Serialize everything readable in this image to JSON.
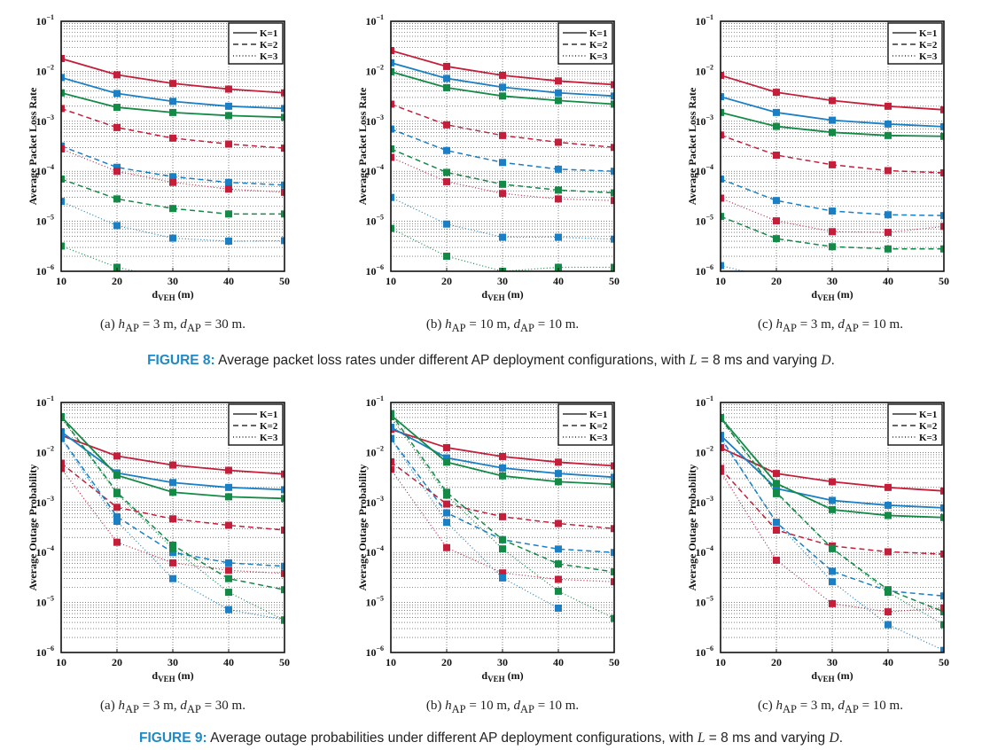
{
  "colors": {
    "red": "#c41e3a",
    "blue": "#1a7fc4",
    "green": "#138a46",
    "caption_label": "#1e8ac8"
  },
  "figures": [
    {
      "label": "FIGURE 8:",
      "caption_pre": "Average packet loss rates under different AP deployment configurations, with ",
      "caption_L": "L",
      "caption_mid": " = 8 ms and varying ",
      "caption_D": "D",
      "caption_end": "."
    },
    {
      "label": "FIGURE 9:",
      "caption_pre": "Average outage probabilities under different AP deployment configurations, with ",
      "caption_L": "L",
      "caption_mid": " = 8 ms and varying ",
      "caption_D": "D",
      "caption_end": "."
    }
  ],
  "subcaptions": [
    {
      "tag": "(a)",
      "h": "3 m",
      "d": "30 m."
    },
    {
      "tag": "(b)",
      "h": "10 m",
      "d": "10 m."
    },
    {
      "tag": "(c)",
      "h": "3 m",
      "d": "10 m."
    }
  ],
  "chart_data": [
    {
      "figure": 8,
      "panel": "a",
      "type": "line",
      "title": "",
      "xlabel": "d_VEH (m)",
      "ylabel": "Average Packet Loss Rate",
      "x": [
        10,
        20,
        30,
        40,
        50
      ],
      "yscale": "log",
      "ylim": [
        1e-06,
        0.1
      ],
      "xticks": [
        "10",
        "20",
        "30",
        "40",
        "50"
      ],
      "yticks": [
        "10^-6",
        "10^-5",
        "10^-4",
        "10^-3",
        "10^-2",
        "10^-1"
      ],
      "grid": true,
      "legend": [
        "K=1",
        "K=2",
        "K=3"
      ],
      "legend_position": "top-right",
      "series": [
        {
          "name": "red K=1",
          "color": "red",
          "style": "solid",
          "values": [
            0.018,
            0.0085,
            0.0057,
            0.0044,
            0.0037
          ]
        },
        {
          "name": "blue K=1",
          "color": "blue",
          "style": "solid",
          "values": [
            0.0075,
            0.0036,
            0.0025,
            0.002,
            0.0018
          ]
        },
        {
          "name": "green K=1",
          "color": "green",
          "style": "solid",
          "values": [
            0.0037,
            0.0019,
            0.0015,
            0.0013,
            0.0012
          ]
        },
        {
          "name": "red K=2",
          "color": "red",
          "style": "dashed",
          "values": [
            0.0018,
            0.00075,
            0.00046,
            0.00035,
            0.00029
          ]
        },
        {
          "name": "blue K=2",
          "color": "blue",
          "style": "dashed",
          "values": [
            0.00032,
            0.00012,
            7.8e-05,
            6e-05,
            5.3e-05
          ]
        },
        {
          "name": "green K=2",
          "color": "green",
          "style": "dashed",
          "values": [
            7e-05,
            2.8e-05,
            1.8e-05,
            1.4e-05,
            1.4e-05
          ]
        },
        {
          "name": "red K=3",
          "color": "red",
          "style": "dotted",
          "values": [
            0.00028,
            0.0001,
            6e-05,
            4.4e-05,
            3.8e-05
          ]
        },
        {
          "name": "blue K=3",
          "color": "blue",
          "style": "dotted",
          "values": [
            2.5e-05,
            8.2e-06,
            4.6e-06,
            4e-06,
            4.1e-06
          ]
        },
        {
          "name": "green K=3",
          "color": "green",
          "style": "dotted",
          "values": [
            3.2e-06,
            1.2e-06,
            7e-07,
            null,
            null
          ]
        }
      ]
    },
    {
      "figure": 8,
      "panel": "b",
      "type": "line",
      "title": "",
      "xlabel": "d_VEH (m)",
      "ylabel": "Average Packet Loss Rate",
      "x": [
        10,
        20,
        30,
        40,
        50
      ],
      "yscale": "log",
      "ylim": [
        1e-06,
        0.1
      ],
      "xticks": [
        "10",
        "20",
        "30",
        "40",
        "50"
      ],
      "yticks": [
        "10^-6",
        "10^-5",
        "10^-4",
        "10^-3",
        "10^-2",
        "10^-1"
      ],
      "grid": true,
      "legend": [
        "K=1",
        "K=2",
        "K=3"
      ],
      "legend_position": "top-right",
      "series": [
        {
          "name": "red K=1",
          "color": "red",
          "style": "solid",
          "values": [
            0.026,
            0.0125,
            0.0083,
            0.0064,
            0.0054
          ]
        },
        {
          "name": "blue K=1",
          "color": "blue",
          "style": "solid",
          "values": [
            0.0148,
            0.0072,
            0.0048,
            0.0037,
            0.0032
          ]
        },
        {
          "name": "green K=1",
          "color": "green",
          "style": "solid",
          "values": [
            0.0098,
            0.0047,
            0.0032,
            0.0026,
            0.0022
          ]
        },
        {
          "name": "red K=2",
          "color": "red",
          "style": "dashed",
          "values": [
            0.0022,
            0.00085,
            0.00052,
            0.00038,
            0.0003
          ]
        },
        {
          "name": "blue K=2",
          "color": "blue",
          "style": "dashed",
          "values": [
            0.0007,
            0.00026,
            0.00015,
            0.00011,
            0.0001
          ]
        },
        {
          "name": "green K=2",
          "color": "green",
          "style": "dashed",
          "values": [
            0.00028,
            9.5e-05,
            5.5e-05,
            4.2e-05,
            3.7e-05
          ]
        },
        {
          "name": "red K=3",
          "color": "red",
          "style": "dotted",
          "values": [
            0.00019,
            6.2e-05,
            3.6e-05,
            2.8e-05,
            2.6e-05
          ]
        },
        {
          "name": "blue K=3",
          "color": "blue",
          "style": "dotted",
          "values": [
            3e-05,
            8.8e-06,
            4.8e-06,
            4.8e-06,
            4.4e-06
          ]
        },
        {
          "name": "green K=3",
          "color": "green",
          "style": "dotted",
          "values": [
            7.2e-06,
            2e-06,
            1e-06,
            1.2e-06,
            1.2e-06
          ]
        }
      ]
    },
    {
      "figure": 8,
      "panel": "c",
      "type": "line",
      "title": "",
      "xlabel": "d_VEH (m)",
      "ylabel": "Average Packet Loss Rate",
      "x": [
        10,
        20,
        30,
        40,
        50
      ],
      "yscale": "log",
      "ylim": [
        1e-06,
        0.1
      ],
      "xticks": [
        "10",
        "20",
        "30",
        "40",
        "50"
      ],
      "yticks": [
        "10^-6",
        "10^-5",
        "10^-4",
        "10^-3",
        "10^-2",
        "10^-1"
      ],
      "grid": true,
      "legend": [
        "K=1",
        "K=2",
        "K=3"
      ],
      "legend_position": "top-right",
      "series": [
        {
          "name": "red K=1",
          "color": "red",
          "style": "solid",
          "values": [
            0.0083,
            0.0038,
            0.0026,
            0.002,
            0.0017
          ]
        },
        {
          "name": "blue K=1",
          "color": "blue",
          "style": "solid",
          "values": [
            0.0031,
            0.0015,
            0.00105,
            0.00088,
            0.00078
          ]
        },
        {
          "name": "green K=1",
          "color": "green",
          "style": "solid",
          "values": [
            0.0015,
            0.00079,
            0.0006,
            0.00052,
            0.0005
          ]
        },
        {
          "name": "red K=2",
          "color": "red",
          "style": "dashed",
          "values": [
            0.00053,
            0.00021,
            0.000135,
            0.000103,
            9.3e-05
          ]
        },
        {
          "name": "blue K=2",
          "color": "blue",
          "style": "dashed",
          "values": [
            7e-05,
            2.6e-05,
            1.6e-05,
            1.35e-05,
            1.3e-05
          ]
        },
        {
          "name": "green K=2",
          "color": "green",
          "style": "dashed",
          "values": [
            1.25e-05,
            4.5e-06,
            3.1e-06,
            2.8e-06,
            2.8e-06
          ]
        },
        {
          "name": "red K=3",
          "color": "red",
          "style": "dotted",
          "values": [
            2.9e-05,
            1.02e-05,
            6.2e-06,
            6e-06,
            7.9e-06
          ]
        },
        {
          "name": "blue K=3",
          "color": "blue",
          "style": "dotted",
          "values": [
            1.3e-06,
            7e-07,
            null,
            null,
            null
          ]
        }
      ]
    },
    {
      "figure": 9,
      "panel": "a",
      "type": "line",
      "title": "",
      "xlabel": "d_VEH (m)",
      "ylabel": "Average Outage Probability",
      "x": [
        10,
        20,
        30,
        40,
        50
      ],
      "yscale": "log",
      "ylim": [
        1e-06,
        0.1
      ],
      "xticks": [
        "10",
        "20",
        "30",
        "40",
        "50"
      ],
      "yticks": [
        "10^-6",
        "10^-5",
        "10^-4",
        "10^-3",
        "10^-2",
        "10^-1"
      ],
      "grid": true,
      "legend": [
        "K=1",
        "K=2",
        "K=3"
      ],
      "legend_position": "top-right",
      "series": [
        {
          "name": "red K=1",
          "color": "red",
          "style": "solid",
          "values": [
            0.022,
            0.0085,
            0.0056,
            0.0044,
            0.0037
          ]
        },
        {
          "name": "blue K=1",
          "color": "blue",
          "style": "solid",
          "values": [
            0.026,
            0.0039,
            0.0025,
            0.002,
            0.0018
          ]
        },
        {
          "name": "green K=1",
          "color": "green",
          "style": "solid",
          "values": [
            0.052,
            0.0035,
            0.0016,
            0.0013,
            0.0012
          ]
        },
        {
          "name": "red K=2",
          "color": "red",
          "style": "dashed",
          "values": [
            0.0061,
            0.0008,
            0.00047,
            0.00035,
            0.00028
          ]
        },
        {
          "name": "blue K=2",
          "color": "blue",
          "style": "dashed",
          "values": [
            0.02,
            0.00052,
            0.0001,
            6.2e-05,
            5.3e-05
          ]
        },
        {
          "name": "green K=2",
          "color": "green",
          "style": "dashed",
          "values": [
            0.052,
            0.0016,
            0.00014,
            3e-05,
            1.8e-05
          ]
        },
        {
          "name": "red K=3",
          "color": "red",
          "style": "dotted",
          "values": [
            0.0048,
            0.00016,
            6.2e-05,
            4.4e-05,
            3.8e-05
          ]
        },
        {
          "name": "blue K=3",
          "color": "blue",
          "style": "dotted",
          "values": [
            0.019,
            0.00042,
            3e-05,
            7.2e-06,
            4.5e-06
          ]
        },
        {
          "name": "green K=3",
          "color": "green",
          "style": "dotted",
          "values": [
            0.05,
            0.0015,
            0.00012,
            1.6e-05,
            4.4e-06
          ]
        }
      ]
    },
    {
      "figure": 9,
      "panel": "b",
      "type": "line",
      "title": "",
      "xlabel": "d_VEH (m)",
      "ylabel": "Average Outage Probability",
      "x": [
        10,
        20,
        30,
        40,
        50
      ],
      "yscale": "log",
      "ylim": [
        1e-06,
        0.1
      ],
      "xticks": [
        "10",
        "20",
        "30",
        "40",
        "50"
      ],
      "yticks": [
        "10^-6",
        "10^-5",
        "10^-4",
        "10^-3",
        "10^-2",
        "10^-1"
      ],
      "grid": true,
      "legend": [
        "K=1",
        "K=2",
        "K=3"
      ],
      "legend_position": "top-right",
      "series": [
        {
          "name": "red K=1",
          "color": "red",
          "style": "solid",
          "values": [
            0.029,
            0.0125,
            0.0083,
            0.0064,
            0.0054
          ]
        },
        {
          "name": "blue K=1",
          "color": "blue",
          "style": "solid",
          "values": [
            0.032,
            0.0078,
            0.0049,
            0.0038,
            0.0032
          ]
        },
        {
          "name": "green K=1",
          "color": "green",
          "style": "solid",
          "values": [
            0.056,
            0.0064,
            0.0034,
            0.0026,
            0.0023
          ]
        },
        {
          "name": "red K=2",
          "color": "red",
          "style": "dashed",
          "values": [
            0.0065,
            0.00093,
            0.00052,
            0.00038,
            0.0003
          ]
        },
        {
          "name": "blue K=2",
          "color": "blue",
          "style": "dashed",
          "values": [
            0.019,
            0.00062,
            0.00018,
            0.000117,
            0.0001
          ]
        },
        {
          "name": "green K=2",
          "color": "green",
          "style": "dashed",
          "values": [
            0.06,
            0.0016,
            0.00018,
            5.9e-05,
            4.1e-05
          ]
        },
        {
          "name": "red K=3",
          "color": "red",
          "style": "dotted",
          "values": [
            0.0046,
            0.000125,
            3.9e-05,
            2.9e-05,
            2.6e-05
          ]
        },
        {
          "name": "blue K=3",
          "color": "blue",
          "style": "dotted",
          "values": [
            0.019,
            0.0004,
            3.1e-05,
            7.7e-06,
            null
          ]
        },
        {
          "name": "green K=3",
          "color": "green",
          "style": "dotted",
          "values": [
            0.052,
            0.0014,
            0.000118,
            1.68e-05,
            4.8e-06
          ]
        }
      ]
    },
    {
      "figure": 9,
      "panel": "c",
      "type": "line",
      "title": "",
      "xlabel": "d_VEH (m)",
      "ylabel": "Average Outage Probability",
      "x": [
        10,
        20,
        30,
        40,
        50
      ],
      "yscale": "log",
      "ylim": [
        1e-06,
        0.1
      ],
      "xticks": [
        "10",
        "20",
        "30",
        "40",
        "50"
      ],
      "yticks": [
        "10^-6",
        "10^-5",
        "10^-4",
        "10^-3",
        "10^-2",
        "10^-1"
      ],
      "grid": true,
      "legend": [
        "K=1",
        "K=2",
        "K=3"
      ],
      "legend_position": "top-right",
      "series": [
        {
          "name": "red K=1",
          "color": "red",
          "style": "solid",
          "values": [
            0.0125,
            0.0038,
            0.0026,
            0.002,
            0.0017
          ]
        },
        {
          "name": "blue K=1",
          "color": "blue",
          "style": "solid",
          "values": [
            0.022,
            0.0019,
            0.0011,
            0.00088,
            0.00078
          ]
        },
        {
          "name": "green K=1",
          "color": "green",
          "style": "solid",
          "values": [
            0.05,
            0.0024,
            0.00072,
            0.00055,
            0.0005
          ]
        },
        {
          "name": "red K=2",
          "color": "red",
          "style": "dashed",
          "values": [
            0.0048,
            0.00028,
            0.000135,
            0.000103,
            9.3e-05
          ]
        },
        {
          "name": "blue K=2",
          "color": "blue",
          "style": "dashed",
          "values": [
            0.02,
            0.0004,
            4.2e-05,
            1.7e-05,
            1.35e-05
          ]
        },
        {
          "name": "green K=2",
          "color": "green",
          "style": "dashed",
          "values": [
            0.048,
            0.0016,
            0.00012,
            1.8e-05,
            6.5e-06
          ]
        },
        {
          "name": "red K=3",
          "color": "red",
          "style": "dotted",
          "values": [
            0.0042,
            7e-05,
            9.5e-06,
            6.5e-06,
            7.8e-06
          ]
        },
        {
          "name": "blue K=3",
          "color": "blue",
          "style": "dotted",
          "values": [
            0.019,
            0.0004,
            2.6e-05,
            3.6e-06,
            1.1e-06
          ]
        },
        {
          "name": "green K=3",
          "color": "green",
          "style": "dotted",
          "values": [
            0.048,
            0.0015,
            0.00012,
            1.6e-05,
            3.6e-06
          ]
        }
      ]
    }
  ]
}
